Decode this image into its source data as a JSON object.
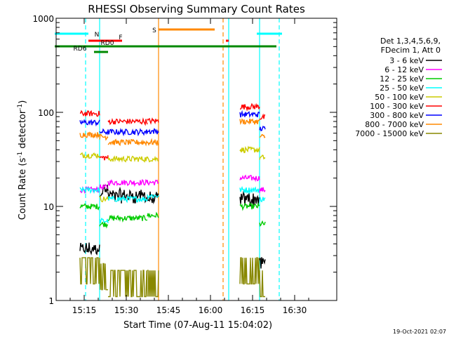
{
  "chart_data": {
    "type": "line",
    "title": "RHESSI Observing Summary Count Rates",
    "xlabel": "Start Time (07-Aug-11 15:04:02)",
    "ylabel": "Count Rate (s",
    "ylabel_sup": "-1",
    "ylabel_mid": " detector",
    "ylabel_end": ")",
    "y_scale": "log",
    "ylim": [
      1,
      1000
    ],
    "xlim_minutes": [
      0,
      57
    ],
    "x_ticks": [
      {
        "label": "15:15",
        "minutes": 11
      },
      {
        "label": "15:30",
        "minutes": 26
      },
      {
        "label": "15:45",
        "minutes": 41
      },
      {
        "label": "16:00",
        "minutes": 56
      },
      {
        "label": "16:15",
        "minutes": 71
      },
      {
        "label": "16:30",
        "minutes": 86
      }
    ],
    "y_ticks": [
      {
        "label": "1",
        "value": 1
      },
      {
        "label": "10",
        "value": 10
      },
      {
        "label": "100",
        "value": 100
      },
      {
        "label": "1000",
        "value": 1000
      }
    ],
    "legend_header": [
      "Det 1,3,4,5,6,9,",
      "FDecim 1, Att 0"
    ],
    "series": [
      {
        "name": "3 - 6 keV",
        "color": "#000000",
        "base": [
          null,
          3.5,
          15,
          13,
          12,
          null,
          12,
          2.5
        ]
      },
      {
        "name": "6 - 12 keV",
        "color": "#ff00ff",
        "base": [
          null,
          15,
          16,
          18,
          18,
          null,
          20,
          15
        ]
      },
      {
        "name": "12 - 25 keV",
        "color": "#00cc00",
        "base": [
          null,
          10,
          6.5,
          7.5,
          8,
          null,
          10,
          6.5
        ]
      },
      {
        "name": "25 - 50 keV",
        "color": "#00ffff",
        "base": [
          null,
          15,
          7,
          12,
          13,
          null,
          15,
          12
        ]
      },
      {
        "name": "50 - 100 keV",
        "color": "#cccc00",
        "base": [
          null,
          35,
          12,
          32,
          32,
          null,
          40,
          33
        ]
      },
      {
        "name": "100 - 300 keV",
        "color": "#ff0000",
        "base": [
          null,
          97,
          33,
          80,
          81,
          null,
          115,
          88
        ]
      },
      {
        "name": "300 - 800 keV",
        "color": "#0000ff",
        "base": [
          null,
          78,
          62,
          62,
          63,
          null,
          95,
          67
        ]
      },
      {
        "name": "800 - 7000 keV",
        "color": "#ff8800",
        "base": [
          null,
          58,
          55,
          48,
          48,
          null,
          80,
          55
        ]
      },
      {
        "name": "7000 - 15000 keV",
        "color": "#888800",
        "base": [
          null,
          1.5,
          1.3,
          1.1,
          1.1,
          null,
          1.5,
          1.1
        ]
      }
    ],
    "segments_minutes": [
      [
        0,
        9
      ],
      [
        9,
        16
      ],
      [
        16,
        19
      ],
      [
        19,
        33
      ],
      [
        33,
        37
      ],
      [
        37,
        66
      ],
      [
        66,
        73
      ],
      [
        73,
        75
      ]
    ],
    "flags": [
      {
        "label": "N",
        "color": "#00ffff",
        "y_rank": 1,
        "spans": [
          [
            0,
            12
          ],
          [
            72,
            81
          ]
        ]
      },
      {
        "label": "S",
        "color": "#ff8800",
        "y_rank": 0,
        "spans": [
          [
            37,
            57
          ]
        ]
      },
      {
        "label": "F",
        "color": "#ff0000",
        "y_rank": 2,
        "spans": [
          [
            12,
            24
          ],
          [
            61,
            62
          ]
        ]
      },
      {
        "label": "RD0",
        "color": "#008800",
        "y_rank": 3,
        "spans": [
          [
            0,
            79
          ]
        ]
      },
      {
        "label": "RD6",
        "color": "#008800",
        "y_rank": 4,
        "spans": [
          [
            14,
            19
          ]
        ]
      }
    ],
    "vlines": [
      {
        "minutes": 11,
        "color": "#00ffff",
        "dashed": true
      },
      {
        "minutes": 16,
        "color": "#00ffff",
        "dashed": false
      },
      {
        "minutes": 37,
        "color": "#ff8800",
        "dashed": false
      },
      {
        "minutes": 60,
        "color": "#ff8800",
        "dashed": true
      },
      {
        "minutes": 62,
        "color": "#00ffff",
        "dashed": false
      },
      {
        "minutes": 73,
        "color": "#00ffff",
        "dashed": false
      },
      {
        "minutes": 80,
        "color": "#00ffff",
        "dashed": true
      }
    ],
    "timestamp": "19-Oct-2021 02:07"
  }
}
